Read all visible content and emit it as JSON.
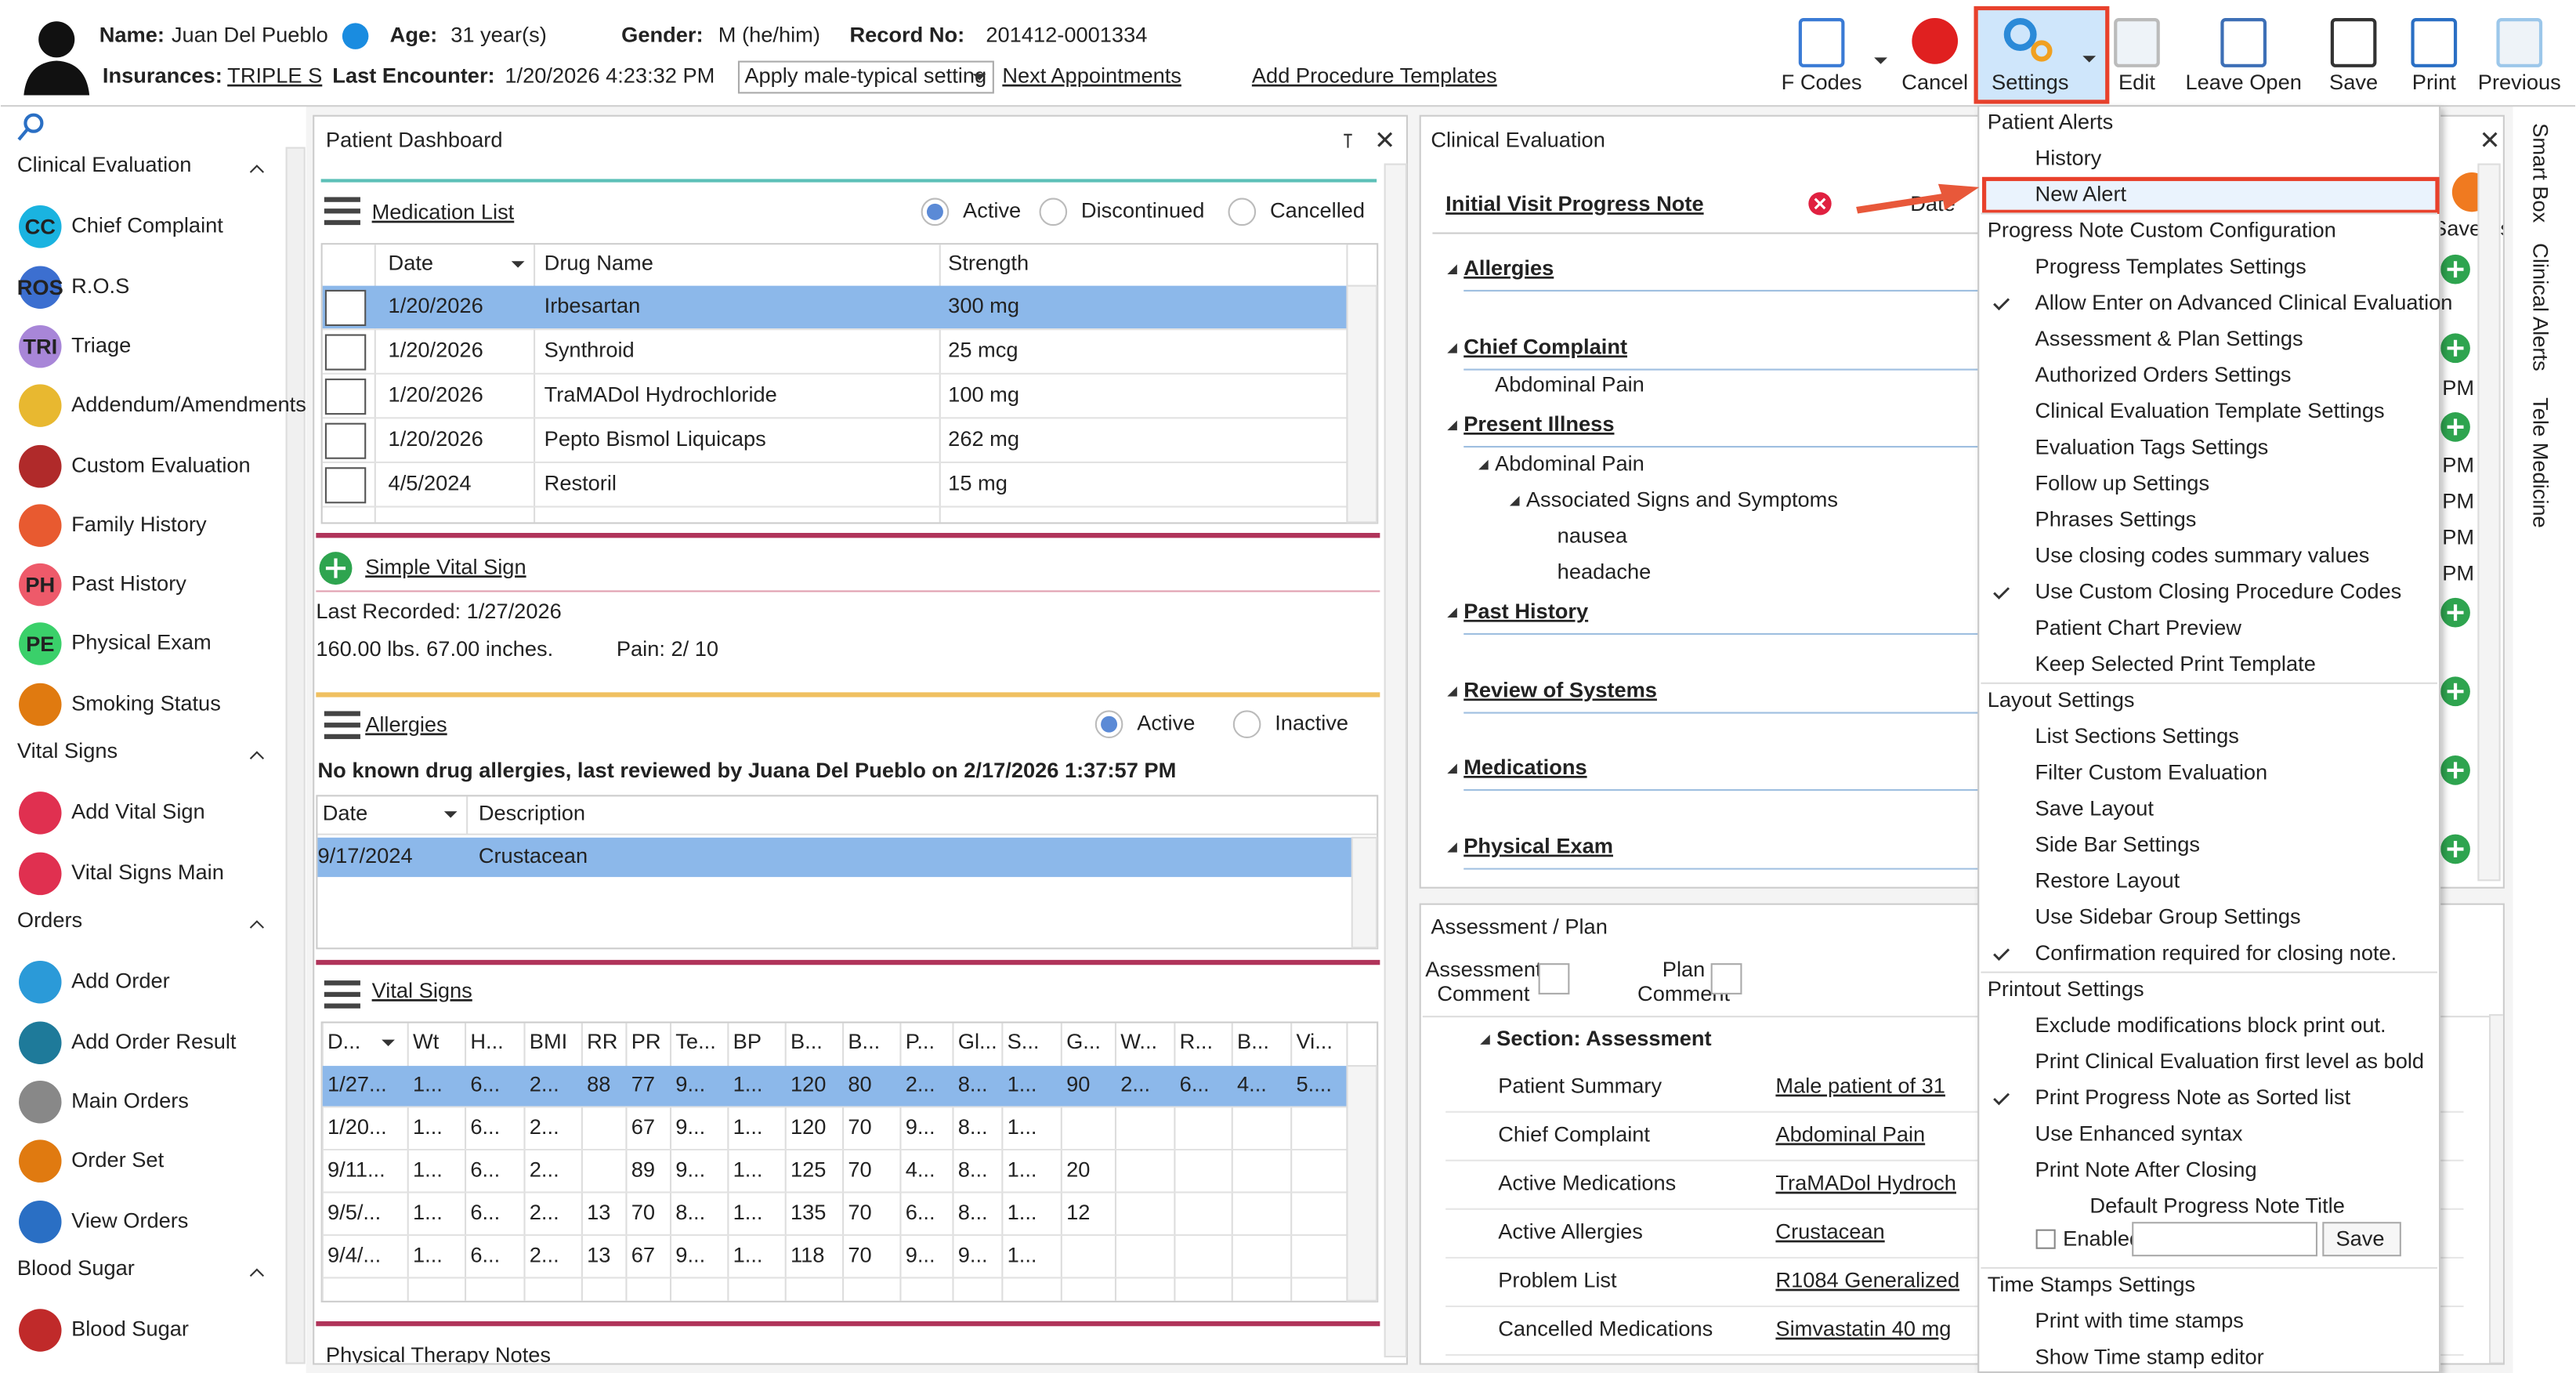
{
  "header": {
    "name_label": "Name:",
    "name": "Juan Del Pueblo",
    "age_label": "Age:",
    "age": "31 year(s)",
    "gender_label": "Gender:",
    "gender": "M (he/him)",
    "record_label": "Record No:",
    "record": "201412-0001334",
    "insurances_label": "Insurances:",
    "insurance": "TRIPLE S",
    "last_encounter_label": "Last Encounter:",
    "last_encounter": "1/20/2026 4:23:32 PM",
    "setting_dropdown": "Apply male-typical setting",
    "links": [
      "Next Appointments",
      "Add Procedure Templates"
    ]
  },
  "toolbar": [
    "F Codes",
    "Cancel",
    "Settings",
    "Edit",
    "Leave Open",
    "Save",
    "Print",
    "Previous"
  ],
  "sidebar": [
    {
      "title": "Clinical Evaluation",
      "items": [
        {
          "badge": "CC",
          "label": "Chief Complaint"
        },
        {
          "badge": "ROS",
          "label": "R.O.S"
        },
        {
          "badge": "TRI",
          "label": "Triage"
        },
        {
          "label": "Addendum/Amendments"
        },
        {
          "label": "Custom Evaluation"
        },
        {
          "label": "Family History"
        },
        {
          "badge": "PH",
          "label": "Past History"
        },
        {
          "badge": "PE",
          "label": "Physical Exam"
        },
        {
          "label": "Smoking Status"
        }
      ]
    },
    {
      "title": "Vital Signs",
      "items": [
        {
          "label": "Add Vital Sign"
        },
        {
          "label": "Vital Signs Main"
        }
      ]
    },
    {
      "title": "Orders",
      "items": [
        {
          "label": "Add Order"
        },
        {
          "label": "Add Order Result"
        },
        {
          "label": "Main Orders"
        },
        {
          "label": "Order Set"
        },
        {
          "label": "View Orders"
        }
      ]
    },
    {
      "title": "Blood Sugar",
      "items": [
        {
          "label": "Blood Sugar"
        }
      ]
    }
  ],
  "dashboard": {
    "title": "Patient Dashboard",
    "medication_list": {
      "title": "Medication List",
      "filters": [
        "Active",
        "Discontinued",
        "Cancelled"
      ],
      "columns": [
        "Date",
        "Drug Name",
        "Strength"
      ],
      "rows": [
        [
          "1/20/2026",
          "Irbesartan",
          "300 mg"
        ],
        [
          "1/20/2026",
          "Synthroid",
          "25 mcg"
        ],
        [
          "1/20/2026",
          "TraMADol Hydrochloride",
          "100 mg"
        ],
        [
          "1/20/2026",
          "Pepto Bismol Liquicaps",
          "262 mg"
        ],
        [
          "4/5/2024",
          "Restoril",
          "15 mg"
        ]
      ]
    },
    "simple_vital_sign": {
      "title": "Simple Vital Sign",
      "last_recorded": "Last Recorded: 1/27/2026",
      "measures": "160.00 lbs. 67.00 inches.",
      "pain": "Pain: 2/ 10"
    },
    "allergies": {
      "title": "Allergies",
      "filters": [
        "Active",
        "Inactive"
      ],
      "note": "No known drug allergies, last reviewed by Juana Del Pueblo on 2/17/2026 1:37:57 PM",
      "columns": [
        "Date",
        "Description"
      ],
      "rows": [
        [
          "9/17/2024",
          "Crustacean"
        ]
      ]
    },
    "vital_signs": {
      "title": "Vital Signs",
      "columns": [
        "D...",
        "Wt",
        "H...",
        "BMI",
        "RR",
        "PR",
        "Te...",
        "BP",
        "B...",
        "B...",
        "P...",
        "Gl...",
        "S...",
        "G...",
        "W...",
        "R...",
        "B...",
        "Vi..."
      ],
      "rows": [
        [
          "1/27...",
          "1...",
          "6...",
          "2...",
          "88",
          "77",
          "9...",
          "1...",
          "120",
          "80",
          "2...",
          "8...",
          "1...",
          "90",
          "2...",
          "6...",
          "4...",
          "5...."
        ],
        [
          "1/20...",
          "1...",
          "6...",
          "2...",
          null,
          "67",
          "9...",
          "1...",
          "120",
          "70",
          "9...",
          "8...",
          "1...",
          null,
          null,
          null,
          null,
          null
        ],
        [
          "9/11...",
          "1...",
          "6...",
          "2...",
          null,
          "89",
          "9...",
          "1...",
          "125",
          "70",
          "4...",
          "8...",
          "1...",
          "20",
          null,
          null,
          null,
          null
        ],
        [
          "9/5/...",
          "1...",
          "6...",
          "2...",
          "13",
          "70",
          "8...",
          "1...",
          "135",
          "70",
          "6...",
          "8...",
          "1...",
          "12",
          null,
          null,
          null,
          null
        ],
        [
          "9/4/...",
          "1...",
          "6...",
          "2...",
          "13",
          "67",
          "9...",
          "1...",
          "118",
          "70",
          "9...",
          "9...",
          "1...",
          null,
          null,
          null,
          null,
          null
        ]
      ]
    },
    "physical_therapy": {
      "title": "Physical Therapy Notes"
    }
  },
  "clinical_evaluation": {
    "title": "Clinical Evaluation",
    "note_title": "Initial Visit Progress Note",
    "date_label": "Date",
    "save_as": "Save As",
    "times": [
      "PM",
      "PM",
      "PM",
      "PM",
      "PM"
    ],
    "sections": [
      {
        "label": "Allergies"
      },
      {
        "label": "Chief Complaint",
        "children": [
          {
            "label": "Abdominal Pain"
          }
        ]
      },
      {
        "label": "Present Illness",
        "children": [
          {
            "label": "Abdominal Pain",
            "children": [
              {
                "label": "Associated Signs and Symptoms",
                "children": [
                  {
                    "label": "nausea"
                  },
                  {
                    "label": "headache"
                  }
                ]
              }
            ]
          }
        ]
      },
      {
        "label": "Past History"
      },
      {
        "label": "Review of Systems"
      },
      {
        "label": "Medications"
      },
      {
        "label": "Physical Exam"
      }
    ]
  },
  "assessment_plan": {
    "title": "Assessment / Plan",
    "assessment_label": [
      "Assessment",
      "Comment"
    ],
    "plan_label": [
      "Plan",
      "Comment"
    ],
    "section": "Section: Assessment",
    "rows": [
      [
        "Patient Summary",
        "Male patient of 31"
      ],
      [
        "Chief Complaint",
        "Abdominal Pain"
      ],
      [
        "Active Medications",
        "TraMADol Hydroch"
      ],
      [
        "Active Allergies",
        "Crustacean"
      ],
      [
        "Problem List",
        "R1084 Generalized"
      ],
      [
        "Cancelled Medications",
        "Simvastatin 40 mg"
      ]
    ]
  },
  "settings_menu": {
    "groups": [
      {
        "header": "Patient Alerts",
        "items": [
          {
            "label": "History"
          },
          {
            "label": "New Alert"
          }
        ]
      },
      {
        "header": "Progress Note Custom Configuration",
        "items": [
          {
            "label": "Progress Templates Settings"
          },
          {
            "label": "Allow Enter on Advanced Clinical Evaluation",
            "checked": true
          },
          {
            "label": "Assessment & Plan Settings"
          },
          {
            "label": "Authorized Orders Settings"
          },
          {
            "label": "Clinical Evaluation Template Settings"
          },
          {
            "label": "Evaluation Tags Settings"
          },
          {
            "label": "Follow up Settings"
          },
          {
            "label": "Phrases Settings"
          },
          {
            "label": "Use closing codes summary values"
          },
          {
            "label": "Use Custom Closing Procedure Codes",
            "checked": true
          },
          {
            "label": "Patient Chart Preview"
          },
          {
            "label": "Keep Selected Print Template"
          }
        ]
      },
      {
        "header": "Layout Settings",
        "items": [
          {
            "label": "List Sections Settings"
          },
          {
            "label": "Filter Custom Evaluation"
          },
          {
            "label": "Save Layout"
          },
          {
            "label": "Side Bar Settings"
          },
          {
            "label": "Restore Layout"
          },
          {
            "label": "Use Sidebar Group Settings"
          },
          {
            "label": "Confirmation required for closing note.",
            "checked": true
          }
        ]
      },
      {
        "header": "Printout Settings",
        "items": [
          {
            "label": "Exclude modifications block print out."
          },
          {
            "label": "Print Clinical Evaluation first level as bold"
          },
          {
            "label": "Print Progress Note as Sorted list",
            "checked": true
          },
          {
            "label": "Use Enhanced syntax",
            "disabled": true
          },
          {
            "label": "Print Note After Closing"
          }
        ],
        "note_title": {
          "label": "Default Progress Note Title",
          "enabled_label": "Enabled",
          "save": "Save"
        }
      },
      {
        "header": "Time Stamps Settings",
        "items": [
          {
            "label": "Print with time stamps"
          },
          {
            "label": "Show Time stamp editor"
          }
        ]
      }
    ]
  },
  "side_tabs": [
    "Smart Box",
    "Clinical Alerts",
    "Tele Medicine"
  ]
}
